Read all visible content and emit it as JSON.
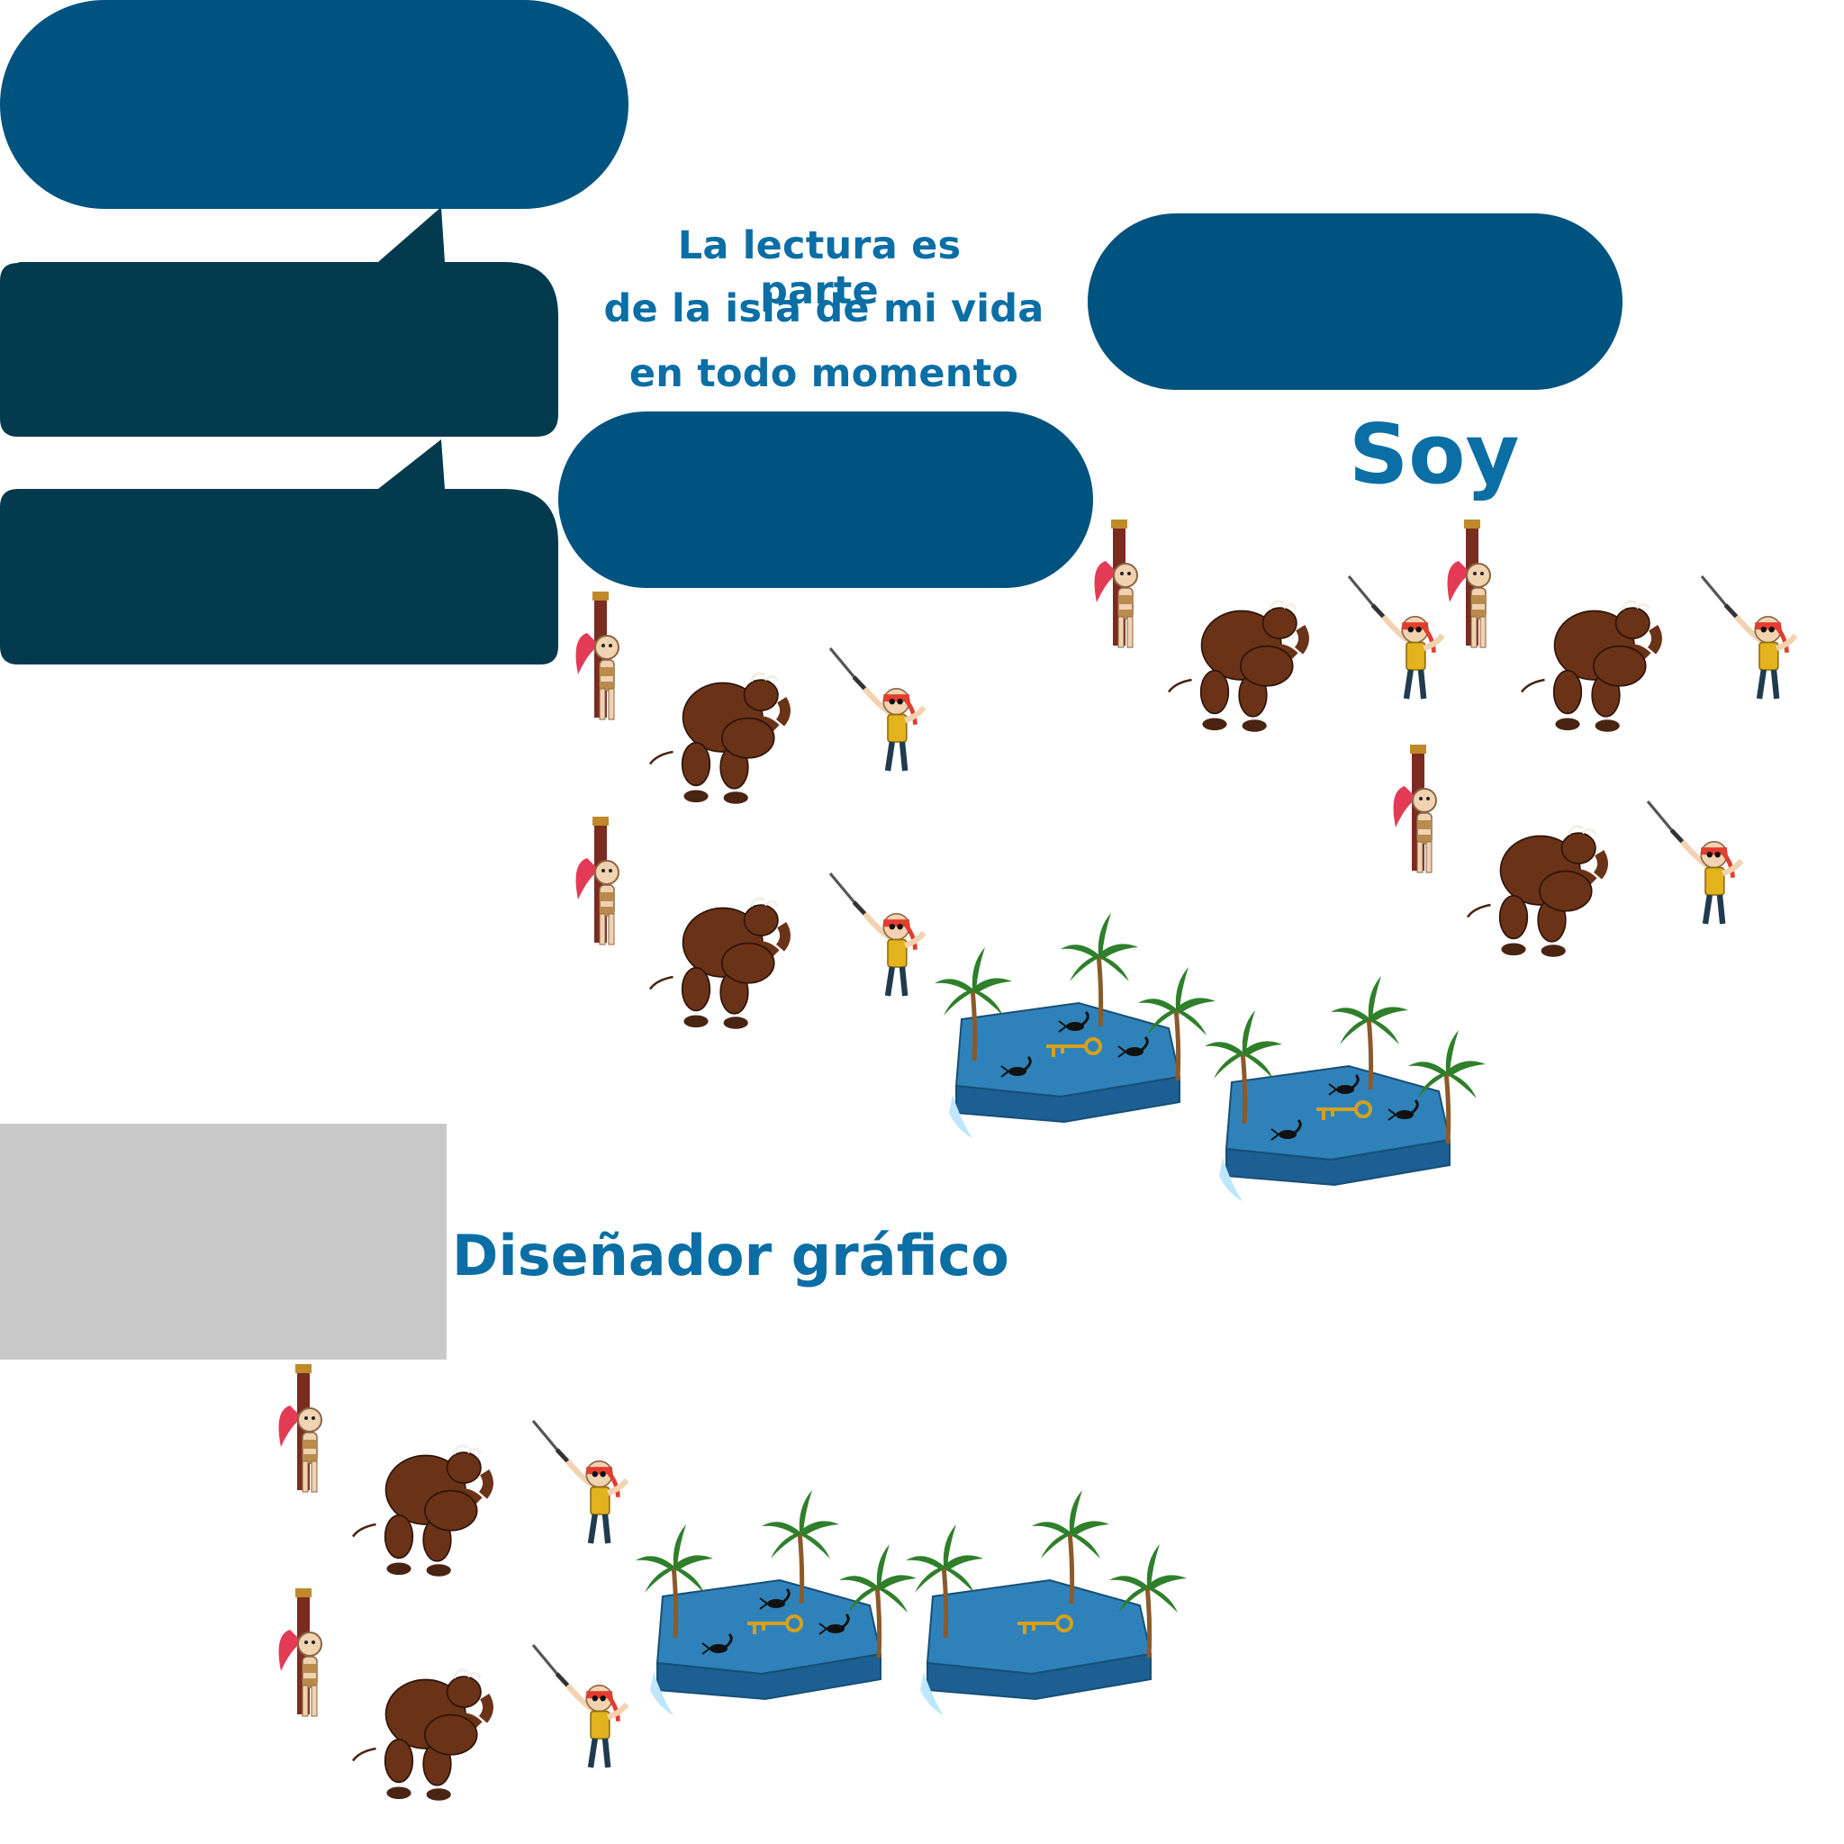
{
  "quote": {
    "line1": "La lectura es parte",
    "line2": "de la isla de mi vida",
    "line3": "en todo momento"
  },
  "headings": {
    "soy": "Soy",
    "role": "Diseñador gráfico"
  },
  "colors": {
    "blue_bubble": "#00527f",
    "dark_bubble": "#033a4d",
    "text_blue": "#0b6ea5",
    "gray_block": "#c9c9c9",
    "island": "#2f82b9",
    "island_side": "#1d5f92",
    "palm_leaf": "#2f7f2b",
    "palm_trunk": "#8b5a2b",
    "monster": "#6a3318",
    "hero_bandana": "#e23d2f",
    "hero_vest": "#e2b31c"
  },
  "icons": {
    "girl": "captive-girl-icon",
    "monster": "monster-icon",
    "hero": "hero-with-sword-icon",
    "island": "island-icon",
    "palm": "palm-tree-icon",
    "scorpion": "scorpion-icon",
    "key": "key-icon"
  }
}
